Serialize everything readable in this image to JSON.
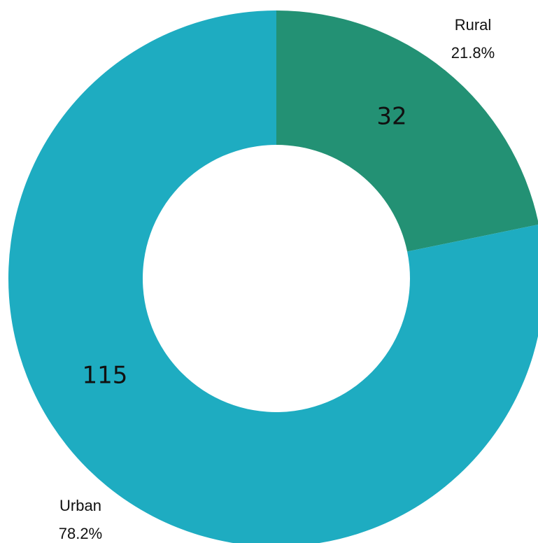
{
  "chart_data": {
    "type": "donut",
    "categories": [
      "Rural",
      "Urban"
    ],
    "values": [
      32,
      115
    ],
    "percentages": [
      "21.8%",
      "78.2%"
    ],
    "colors": [
      "#239174",
      "#1eacc1"
    ]
  }
}
